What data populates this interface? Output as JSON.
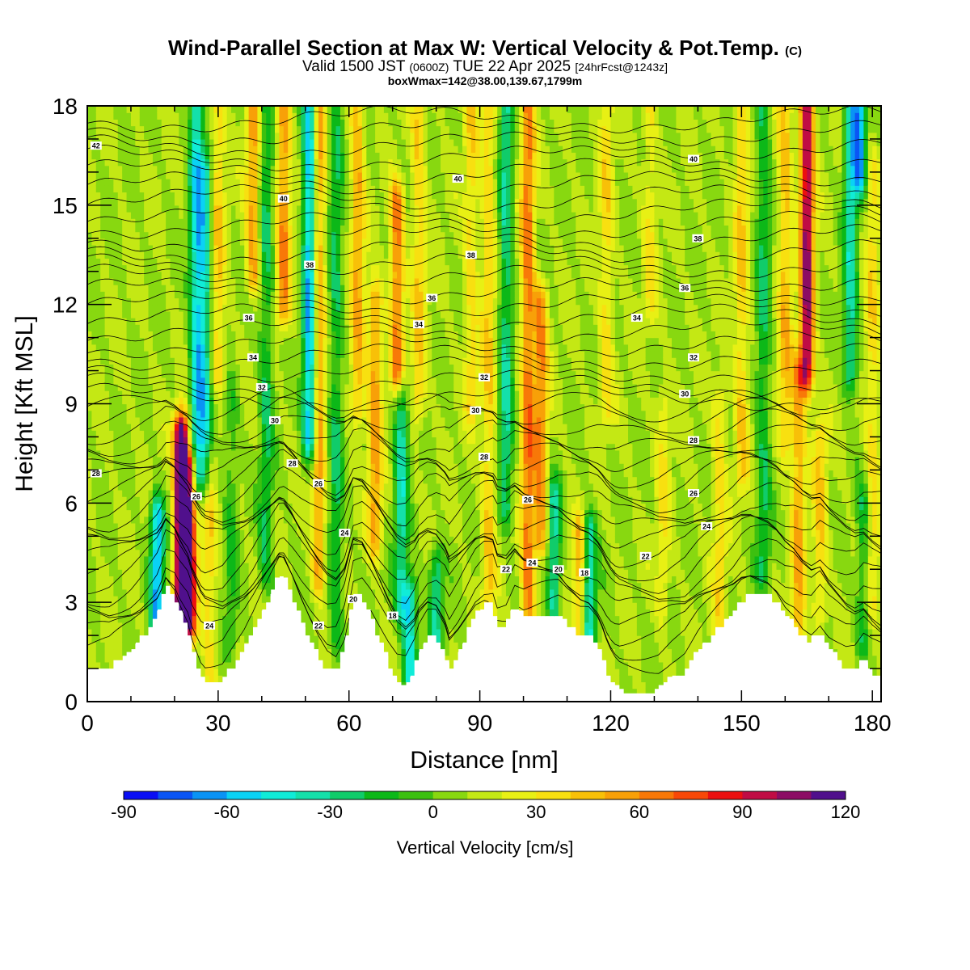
{
  "title": {
    "main": "Wind-Parallel Section at Max W: Vertical Velocity & Pot.Temp.",
    "main_tag": "(C)",
    "valid_prefix": "Valid 1500 JST",
    "valid_z": "(0600Z)",
    "valid_date": "TUE 22 Apr 2025",
    "fcst": "[24hrFcst@1243z]",
    "box": "boxWmax=142@38.00,139.67,1799m"
  },
  "chart_data": {
    "type": "heatmap",
    "xlabel": "Distance [nm]",
    "ylabel": "Height [Kft MSL]",
    "xlim": [
      0,
      182
    ],
    "ylim": [
      0,
      18
    ],
    "xticks": [
      0,
      30,
      60,
      90,
      120,
      150,
      180
    ],
    "yticks": [
      0,
      3,
      6,
      9,
      12,
      15,
      18
    ],
    "field": "Vertical Velocity [cm/s]",
    "contour_field": "Potential Temperature [C]",
    "colorbar": {
      "label": "Vertical Velocity [cm/s]",
      "min": -90,
      "max": 130,
      "step": 10,
      "tick_values": [
        -90,
        -60,
        -30,
        0,
        30,
        60,
        90,
        120
      ],
      "colors": [
        "#0a0ef5",
        "#0a55f5",
        "#0a93f5",
        "#0ad2f5",
        "#10ecd8",
        "#14e0aa",
        "#10cc6a",
        "#0cb818",
        "#3cc010",
        "#88d810",
        "#c4e814",
        "#e8f014",
        "#f8e010",
        "#f8c008",
        "#f8a008",
        "#f87808",
        "#f84808",
        "#ec1010",
        "#c00c44",
        "#8c0c64",
        "#50108c"
      ]
    },
    "terrain_kft": [
      [
        0,
        1.0
      ],
      [
        5,
        1.0
      ],
      [
        8,
        1.3
      ],
      [
        10,
        1.5
      ],
      [
        12,
        1.8
      ],
      [
        14,
        2.2
      ],
      [
        16,
        2.6
      ],
      [
        17,
        3.0
      ],
      [
        18,
        3.5
      ],
      [
        20,
        3.2
      ],
      [
        21,
        2.8
      ],
      [
        23,
        2.2
      ],
      [
        24,
        1.6
      ],
      [
        25,
        1.2
      ],
      [
        26,
        0.8
      ],
      [
        27,
        0.6
      ],
      [
        31,
        0.6
      ],
      [
        33,
        1.0
      ],
      [
        36,
        1.5
      ],
      [
        38,
        2.0
      ],
      [
        40,
        2.6
      ],
      [
        42,
        3.2
      ],
      [
        44,
        3.8
      ],
      [
        45,
        3.8
      ],
      [
        47,
        3.2
      ],
      [
        49,
        2.5
      ],
      [
        51,
        1.9
      ],
      [
        53,
        1.4
      ],
      [
        55,
        1.0
      ],
      [
        57,
        0.9
      ],
      [
        59,
        1.6
      ],
      [
        60,
        2.4
      ],
      [
        61,
        3.2
      ],
      [
        63,
        3.2
      ],
      [
        65,
        2.6
      ],
      [
        67,
        1.9
      ],
      [
        69,
        1.2
      ],
      [
        71,
        0.6
      ],
      [
        73,
        0.4
      ],
      [
        75,
        0.9
      ],
      [
        76,
        1.4
      ],
      [
        78,
        1.9
      ],
      [
        80,
        1.9
      ],
      [
        82,
        1.4
      ],
      [
        83,
        0.9
      ],
      [
        85,
        1.4
      ],
      [
        87,
        2.0
      ],
      [
        89,
        2.6
      ],
      [
        91,
        2.9
      ],
      [
        93,
        2.9
      ],
      [
        94,
        2.3
      ],
      [
        96,
        2.3
      ],
      [
        98,
        2.9
      ],
      [
        100,
        2.6
      ],
      [
        102,
        2.6
      ],
      [
        108,
        2.6
      ],
      [
        110,
        2.3
      ],
      [
        113,
        2.0
      ],
      [
        115,
        2.0
      ],
      [
        117,
        1.7
      ],
      [
        118,
        1.4
      ],
      [
        119,
        1.0
      ],
      [
        120,
        0.7
      ],
      [
        121,
        0.5
      ],
      [
        123,
        0.3
      ],
      [
        130,
        0.3
      ],
      [
        132,
        0.5
      ],
      [
        134,
        0.7
      ],
      [
        137,
        0.9
      ],
      [
        140,
        1.5
      ],
      [
        142,
        1.8
      ],
      [
        145,
        2.2
      ],
      [
        148,
        2.6
      ],
      [
        150,
        3.0
      ],
      [
        152,
        3.2
      ],
      [
        156,
        3.2
      ],
      [
        158,
        3.0
      ],
      [
        160,
        2.6
      ],
      [
        162,
        2.4
      ],
      [
        164,
        2.0
      ],
      [
        166,
        1.8
      ],
      [
        168,
        2.1
      ],
      [
        170,
        1.6
      ],
      [
        172,
        1.3
      ],
      [
        174,
        1.0
      ],
      [
        176,
        0.9
      ],
      [
        178,
        1.2
      ],
      [
        180,
        0.9
      ],
      [
        182,
        0.7
      ]
    ],
    "w_bands": [
      {
        "x": 21.5,
        "y0": 2.5,
        "y1": 8.0,
        "value": 132
      },
      {
        "x": 23.5,
        "y0": 2.5,
        "y1": 7.0,
        "value": 90
      },
      {
        "x": 16,
        "y0": 2.5,
        "y1": 5.5,
        "value": -70
      },
      {
        "x": 25,
        "y0": 7.0,
        "y1": 18,
        "value": -55
      },
      {
        "x": 27,
        "y0": 7.0,
        "y1": 16,
        "value": -45
      },
      {
        "x": 28,
        "y0": 1.0,
        "y1": 7.0,
        "value": 25
      },
      {
        "x": 30,
        "y0": 10,
        "y1": 18,
        "value": 30
      },
      {
        "x": 33,
        "y0": 2.0,
        "y1": 9,
        "value": -20
      },
      {
        "x": 38,
        "y0": 13,
        "y1": 18,
        "value": 45
      },
      {
        "x": 41,
        "y0": 4,
        "y1": 18,
        "value": -30
      },
      {
        "x": 45,
        "y0": 12,
        "y1": 18,
        "value": 50
      },
      {
        "x": 51,
        "y0": 8,
        "y1": 18,
        "value": -75
      },
      {
        "x": 53,
        "y0": 4,
        "y1": 18,
        "value": 45
      },
      {
        "x": 57,
        "y0": 2,
        "y1": 18,
        "value": -30
      },
      {
        "x": 62,
        "y0": 9,
        "y1": 18,
        "value": 40
      },
      {
        "x": 66,
        "y0": 5,
        "y1": 12,
        "value": 45
      },
      {
        "x": 71,
        "y0": 10,
        "y1": 15,
        "value": 55
      },
      {
        "x": 72,
        "y0": 3,
        "y1": 9,
        "value": -45
      },
      {
        "x": 74,
        "y0": 1,
        "y1": 3,
        "value": -60
      },
      {
        "x": 76,
        "y0": 9,
        "y1": 18,
        "value": 30
      },
      {
        "x": 80,
        "y0": 2,
        "y1": 4,
        "value": -40
      },
      {
        "x": 88,
        "y0": 9,
        "y1": 18,
        "value": 25
      },
      {
        "x": 92,
        "y0": 2,
        "y1": 18,
        "value": 30
      },
      {
        "x": 96,
        "y0": 6,
        "y1": 18,
        "value": -40
      },
      {
        "x": 101,
        "y0": 3,
        "y1": 18,
        "value": 55
      },
      {
        "x": 104,
        "y0": 5,
        "y1": 12,
        "value": 50
      },
      {
        "x": 107,
        "y0": 3,
        "y1": 6,
        "value": -45
      },
      {
        "x": 113,
        "y0": 2,
        "y1": 5,
        "value": 40
      },
      {
        "x": 115,
        "y0": 2,
        "y1": 5,
        "value": -55
      },
      {
        "x": 119,
        "y0": 9,
        "y1": 18,
        "value": 25
      },
      {
        "x": 129,
        "y0": 12,
        "y1": 18,
        "value": 20
      },
      {
        "x": 132,
        "y0": 3,
        "y1": 9,
        "value": 20
      },
      {
        "x": 145,
        "y0": 2,
        "y1": 9,
        "value": 25
      },
      {
        "x": 150,
        "y0": 7,
        "y1": 18,
        "value": 30
      },
      {
        "x": 155,
        "y0": 4,
        "y1": 18,
        "value": -30
      },
      {
        "x": 160,
        "y0": 8,
        "y1": 18,
        "value": 35
      },
      {
        "x": 165,
        "y0": 10,
        "y1": 18,
        "value": 95
      },
      {
        "x": 163,
        "y0": 2,
        "y1": 10,
        "value": 40
      },
      {
        "x": 168,
        "y0": 3,
        "y1": 8,
        "value": 30
      },
      {
        "x": 175,
        "y0": 10,
        "y1": 18,
        "value": -45
      },
      {
        "x": 177,
        "y0": 16,
        "y1": 18,
        "value": -70
      },
      {
        "x": 178,
        "y0": 2,
        "y1": 6,
        "value": -30
      },
      {
        "x": 180,
        "y0": 3,
        "y1": 16,
        "value": 25
      }
    ],
    "theta_levels": [
      18,
      20,
      22,
      24,
      26,
      28,
      30,
      32,
      34,
      36,
      38,
      40,
      42
    ],
    "theta_labels": [
      {
        "text": "42",
        "x": 2,
        "y": 16.8
      },
      {
        "text": "40",
        "x": 45,
        "y": 15.2
      },
      {
        "text": "40",
        "x": 85,
        "y": 15.8
      },
      {
        "text": "40",
        "x": 139,
        "y": 16.4
      },
      {
        "text": "38",
        "x": 51,
        "y": 13.2
      },
      {
        "text": "38",
        "x": 88,
        "y": 13.5
      },
      {
        "text": "38",
        "x": 140,
        "y": 14.0
      },
      {
        "text": "36",
        "x": 37,
        "y": 11.6
      },
      {
        "text": "36",
        "x": 79,
        "y": 12.2
      },
      {
        "text": "36",
        "x": 137,
        "y": 12.5
      },
      {
        "text": "34",
        "x": 38,
        "y": 10.4
      },
      {
        "text": "34",
        "x": 76,
        "y": 11.4
      },
      {
        "text": "34",
        "x": 126,
        "y": 11.6
      },
      {
        "text": "32",
        "x": 40,
        "y": 9.5
      },
      {
        "text": "32",
        "x": 91,
        "y": 9.8
      },
      {
        "text": "32",
        "x": 139,
        "y": 10.4
      },
      {
        "text": "30",
        "x": 43,
        "y": 8.5
      },
      {
        "text": "30",
        "x": 89,
        "y": 8.8
      },
      {
        "text": "30",
        "x": 137,
        "y": 9.3
      },
      {
        "text": "28",
        "x": 2,
        "y": 6.9
      },
      {
        "text": "28",
        "x": 47,
        "y": 7.2
      },
      {
        "text": "28",
        "x": 91,
        "y": 7.4
      },
      {
        "text": "28",
        "x": 139,
        "y": 7.9
      },
      {
        "text": "26",
        "x": 53,
        "y": 6.6
      },
      {
        "text": "26",
        "x": 139,
        "y": 6.3
      },
      {
        "text": "26",
        "x": 101,
        "y": 6.1
      },
      {
        "text": "26",
        "x": 25,
        "y": 6.2
      },
      {
        "text": "24",
        "x": 59,
        "y": 5.1
      },
      {
        "text": "24",
        "x": 142,
        "y": 5.3
      },
      {
        "text": "24",
        "x": 102,
        "y": 4.2
      },
      {
        "text": "24",
        "x": 28,
        "y": 2.3
      },
      {
        "text": "22",
        "x": 96,
        "y": 4.0
      },
      {
        "text": "22",
        "x": 128,
        "y": 4.4
      },
      {
        "text": "22",
        "x": 53,
        "y": 2.3
      },
      {
        "text": "20",
        "x": 108,
        "y": 4.0
      },
      {
        "text": "20",
        "x": 61,
        "y": 3.1
      },
      {
        "text": "18",
        "x": 114,
        "y": 3.9
      },
      {
        "text": "18",
        "x": 70,
        "y": 2.6
      }
    ]
  }
}
